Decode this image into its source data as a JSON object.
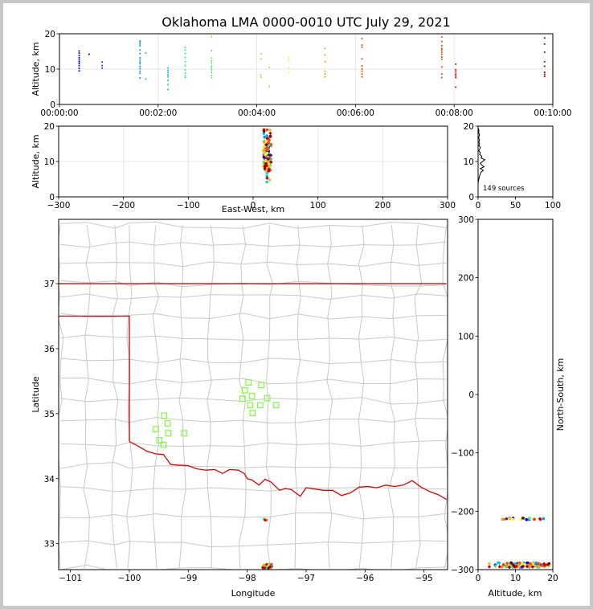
{
  "title": "Oklahoma LMA 0000-0010 UTC July 29, 2021",
  "colors": {
    "border_state": "#e00000",
    "county": "#c8c8c8",
    "station": "#7cfc3c",
    "grid": "#e6e6e6",
    "sources_series": [
      "#0000cd",
      "#0033ff",
      "#0099ff",
      "#00c8e0",
      "#33ddaa",
      "#66e666",
      "#cccc33",
      "#ffee33",
      "#ff9900",
      "#ff4400",
      "#cc0000",
      "#880000"
    ]
  },
  "source_count_label": "149 sources",
  "chart_data": [
    {
      "id": "altitude-time",
      "type": "scatter",
      "xlabel": "",
      "ylabel": "Altitude, km",
      "xlim_seconds": [
        0,
        600
      ],
      "ylim": [
        0,
        20
      ],
      "xticks": [
        "00:00:00",
        "00:02:00",
        "00:04:00",
        "00:06:00",
        "00:08:00",
        "00:10:00"
      ],
      "yticks": [
        "0",
        "10",
        "20"
      ],
      "grid": true,
      "series": [
        {
          "x_seconds": 24,
          "alts": [
            9.5,
            10.2,
            11,
            11.6,
            12.1,
            12.6,
            13.2,
            13.8,
            14.5,
            15.1
          ]
        },
        {
          "x_seconds": 36,
          "alts": [
            14.2
          ]
        },
        {
          "x_seconds": 52,
          "alts": [
            10.3,
            11,
            12
          ]
        },
        {
          "x_seconds": 98,
          "alts": [
            7.5,
            8.8,
            9.4,
            10.1,
            10.8,
            11.5,
            12,
            12.6,
            13.2,
            14.4,
            15.4,
            16.6,
            17.1,
            17.6,
            18
          ]
        },
        {
          "x_seconds": 105,
          "alts": [
            7.2,
            14.6
          ]
        },
        {
          "x_seconds": 132,
          "alts": [
            4.2,
            5.6,
            6.8,
            7.8,
            8.4,
            9,
            9.6,
            10.3
          ]
        },
        {
          "x_seconds": 153,
          "alts": [
            7.6,
            8.1,
            8.8,
            9.8,
            11,
            12.1,
            13.3,
            14.4,
            15.4,
            16.1
          ]
        },
        {
          "x_seconds": 185,
          "alts": [
            7.6,
            8.2,
            9.1,
            9.8,
            10.4,
            10.9,
            11.7,
            12.3,
            13.1,
            15.2,
            19.2
          ]
        },
        {
          "x_seconds": 245,
          "alts": [
            7.7,
            8.3,
            12.9,
            14.3
          ]
        },
        {
          "x_seconds": 255,
          "alts": [
            5.1,
            10.5
          ]
        },
        {
          "x_seconds": 279,
          "alts": [
            9,
            10.3,
            12.4,
            13.2
          ]
        },
        {
          "x_seconds": 323,
          "alts": [
            7.8,
            8.6,
            9.4,
            12.1,
            14,
            15.8
          ]
        },
        {
          "x_seconds": 368,
          "alts": [
            7.8,
            8.6,
            9.4,
            10,
            10.9,
            12.9,
            16.2,
            16.8,
            18.6
          ]
        },
        {
          "x_seconds": 465,
          "alts": [
            7.6,
            8.6,
            10.6,
            12.8,
            13.4,
            14.2,
            14.8,
            15.4,
            15.8,
            16.6,
            17.8,
            19.1
          ]
        },
        {
          "x_seconds": 482,
          "alts": [
            4.9,
            7.6,
            8.1,
            8.6,
            9.2,
            9.8,
            11.4
          ]
        },
        {
          "x_seconds": 590,
          "alts": [
            7.9,
            8.5,
            9.1,
            10.8,
            12.1,
            14.8,
            17.1,
            18.8
          ]
        }
      ]
    },
    {
      "id": "altitude-east-west",
      "type": "scatter",
      "xlabel": "East-West, km",
      "ylabel": "Altitude, km",
      "xlim": [
        -300,
        300
      ],
      "ylim": [
        0,
        20
      ],
      "xticks": [
        "−300",
        "−200",
        "−100",
        "0",
        "100",
        "200",
        "300"
      ],
      "yticks": [
        "0",
        "10",
        "20"
      ],
      "grid": true,
      "cluster_center_x_km": 22,
      "cluster_spread_x_km": 6
    },
    {
      "id": "altitude-histogram",
      "type": "line",
      "xlim": [
        0,
        100
      ],
      "ylim": [
        0,
        20
      ],
      "xticks": [
        "0",
        "50",
        "100"
      ],
      "yticks": [
        "0",
        "10",
        "20"
      ],
      "profile_alt": [
        4,
        5,
        6,
        7,
        7.5,
        8,
        8.5,
        9,
        9.5,
        10,
        10.5,
        11,
        11.5,
        12,
        12.5,
        13,
        13.5,
        14,
        14.5,
        15,
        15.5,
        16,
        16.5,
        17,
        17.5,
        18,
        18.5,
        19,
        19.5,
        20
      ],
      "profile_count": [
        0,
        1,
        2,
        4,
        7,
        3,
        8,
        5,
        3,
        6,
        9,
        4,
        5,
        2,
        3,
        1,
        2,
        3,
        1,
        2,
        1,
        2,
        1,
        1,
        2,
        1,
        1,
        1,
        0,
        0
      ]
    },
    {
      "id": "plan-view-map",
      "type": "scatter",
      "xlabel": "Longitude",
      "ylabel": "Latitude",
      "xlim": [
        -101.2,
        -94.6
      ],
      "ylim": [
        32.6,
        37.99
      ],
      "xticks": [
        "−101",
        "−100",
        "−99",
        "−98",
        "−97",
        "−96",
        "−95"
      ],
      "yticks": [
        "33",
        "34",
        "35",
        "36",
        "37"
      ],
      "stations": [
        {
          "lon": -97.98,
          "lat": 35.48
        },
        {
          "lon": -97.76,
          "lat": 35.44
        },
        {
          "lon": -98.04,
          "lat": 35.36
        },
        {
          "lon": -97.92,
          "lat": 35.27
        },
        {
          "lon": -98.08,
          "lat": 35.23
        },
        {
          "lon": -97.66,
          "lat": 35.24
        },
        {
          "lon": -97.78,
          "lat": 35.13
        },
        {
          "lon": -97.95,
          "lat": 35.13
        },
        {
          "lon": -97.51,
          "lat": 35.13
        },
        {
          "lon": -97.91,
          "lat": 35.01
        },
        {
          "lon": -99.41,
          "lat": 34.97
        },
        {
          "lon": -99.35,
          "lat": 34.85
        },
        {
          "lon": -99.55,
          "lat": 34.76
        },
        {
          "lon": -99.34,
          "lat": 34.7
        },
        {
          "lon": -99.07,
          "lat": 34.7
        },
        {
          "lon": -99.49,
          "lat": 34.59
        },
        {
          "lon": -99.42,
          "lat": 34.52
        }
      ],
      "source_clusters": [
        {
          "lon": -97.68,
          "lat": 33.37,
          "spread_lon": 0.04,
          "spread_lat": 0.02
        },
        {
          "lon": -97.66,
          "lat": 32.65,
          "spread_lon": 0.08,
          "spread_lat": 0.04
        }
      ]
    },
    {
      "id": "north-south-altitude",
      "type": "scatter",
      "xlabel": "Altitude, km",
      "ylabel": "North-South, km",
      "xlim": [
        0,
        20
      ],
      "ylim": [
        -300,
        300
      ],
      "xticks": [
        "0",
        "10",
        "20"
      ],
      "yticks": [
        "−300",
        "−200",
        "−100",
        "0",
        "100",
        "200",
        "300"
      ],
      "grid": false,
      "cluster_a_y_km": -213,
      "cluster_b_y_km": -292
    }
  ]
}
